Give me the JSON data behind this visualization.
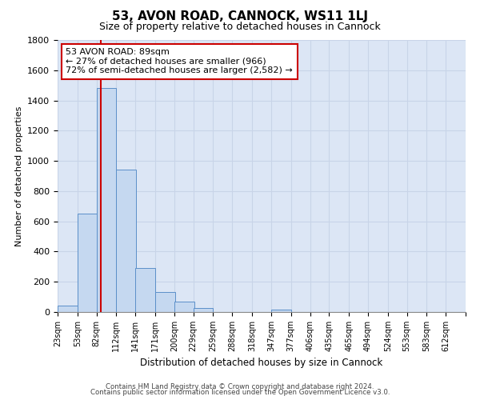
{
  "title": "53, AVON ROAD, CANNOCK, WS11 1LJ",
  "subtitle": "Size of property relative to detached houses in Cannock",
  "xlabel": "Distribution of detached houses by size in Cannock",
  "ylabel": "Number of detached properties",
  "bin_labels": [
    "23sqm",
    "53sqm",
    "82sqm",
    "112sqm",
    "141sqm",
    "171sqm",
    "200sqm",
    "229sqm",
    "259sqm",
    "288sqm",
    "318sqm",
    "347sqm",
    "377sqm",
    "406sqm",
    "435sqm",
    "465sqm",
    "494sqm",
    "524sqm",
    "553sqm",
    "583sqm",
    "612sqm"
  ],
  "bin_edges": [
    23,
    53,
    82,
    112,
    141,
    171,
    200,
    229,
    259,
    288,
    318,
    347,
    377,
    406,
    435,
    465,
    494,
    524,
    553,
    583,
    612
  ],
  "bar_heights": [
    40,
    650,
    1480,
    940,
    290,
    130,
    70,
    25,
    0,
    0,
    0,
    15,
    0,
    0,
    0,
    0,
    0,
    0,
    0,
    0
  ],
  "bar_color": "#c5d8f0",
  "bar_edge_color": "#5b8fc9",
  "grid_color": "#c8d4e8",
  "bg_color": "#dce6f5",
  "red_line_x": 89,
  "annotation_text": "53 AVON ROAD: 89sqm\n← 27% of detached houses are smaller (966)\n72% of semi-detached houses are larger (2,582) →",
  "annotation_border_color": "#cc0000",
  "ylim": [
    0,
    1800
  ],
  "yticks": [
    0,
    200,
    400,
    600,
    800,
    1000,
    1200,
    1400,
    1600,
    1800
  ],
  "footer_line1": "Contains HM Land Registry data © Crown copyright and database right 2024.",
  "footer_line2": "Contains public sector information licensed under the Open Government Licence v3.0."
}
